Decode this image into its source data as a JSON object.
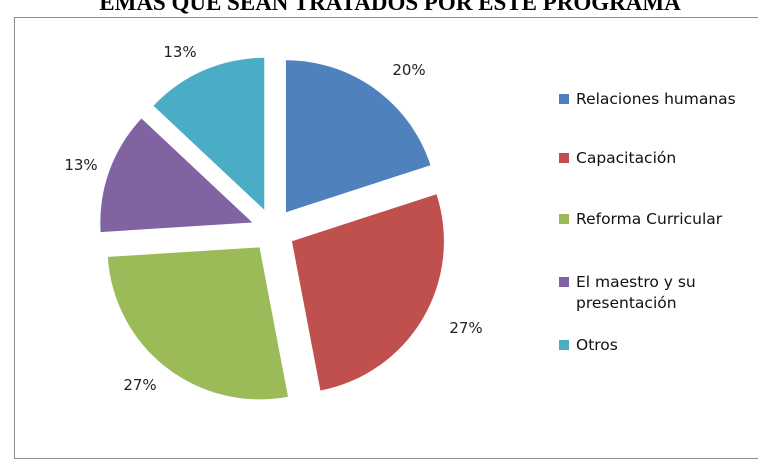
{
  "chart_data": {
    "type": "pie",
    "title": "EMAS QUE SEAN TRATADOS POR ESTE PROGRAMA",
    "exploded": true,
    "legend_position": "right",
    "categories": [
      "Relaciones humanas",
      "Capacitación",
      "Reforma Curricular",
      "El maestro y su presentación",
      "Otros"
    ],
    "values": [
      20,
      27,
      27,
      13,
      13
    ],
    "labels": [
      "20%",
      "27%",
      "27%",
      "13%",
      "13%"
    ],
    "colors": [
      "#4F81BD",
      "#C0504D",
      "#9BBB59",
      "#8064A2",
      "#4BACC6"
    ],
    "legend": [
      [
        "Relaciones humanas"
      ],
      [
        "Capacitación"
      ],
      [
        "Reforma Curricular"
      ],
      [
        "El maestro y su",
        "presentación"
      ],
      [
        "Otros"
      ]
    ]
  }
}
